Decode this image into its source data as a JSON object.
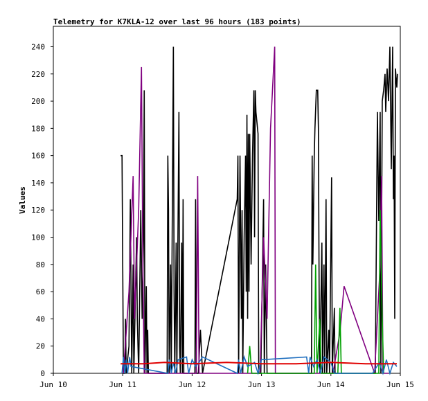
{
  "chart_data": {
    "type": "line",
    "title": "Telemetry for K7KLA-12 over last 96 hours (183 points)",
    "ylabel": "Values",
    "xlim": [
      0,
      5
    ],
    "ylim": [
      0,
      255
    ],
    "xticks": [
      {
        "value": 0,
        "label": "Jun 10"
      },
      {
        "value": 1,
        "label": "Jun 11"
      },
      {
        "value": 2,
        "label": "Jun 12"
      },
      {
        "value": 3,
        "label": "Jun 13"
      },
      {
        "value": 4,
        "label": "Jun 14"
      },
      {
        "value": 5,
        "label": "Jun 15"
      }
    ],
    "yticks": [
      0,
      20,
      40,
      60,
      80,
      100,
      120,
      140,
      160,
      180,
      200,
      220,
      240
    ],
    "series": [
      {
        "color": "#000000",
        "x": [
          0.97,
          0.99,
          1.0,
          1.01,
          1.03,
          1.04,
          1.05,
          1.09,
          1.11,
          1.12,
          1.13,
          1.15,
          1.16,
          1.2,
          1.21,
          1.23,
          1.26,
          1.28,
          1.3,
          1.31,
          1.32,
          1.34,
          1.35,
          1.36,
          1.37,
          1.64,
          1.65,
          1.66,
          1.67,
          1.69,
          1.7,
          1.73,
          1.74,
          1.75,
          1.77,
          1.78,
          1.81,
          1.82,
          1.83,
          1.85,
          1.86,
          1.87,
          1.88,
          2.04,
          2.05,
          2.06,
          2.09,
          2.12,
          2.15,
          2.65,
          2.66,
          2.67,
          2.69,
          2.71,
          2.72,
          2.73,
          2.75,
          2.77,
          2.78,
          2.79,
          2.8,
          2.81,
          2.82,
          2.83,
          2.85,
          2.87,
          2.89,
          2.9,
          2.91,
          2.92,
          2.95,
          2.96,
          2.99,
          3.03,
          3.04,
          3.06,
          3.08,
          3.12,
          3.72,
          3.73,
          3.74,
          3.76,
          3.77,
          3.79,
          3.81,
          3.82,
          3.83,
          3.84,
          3.87,
          3.88,
          3.9,
          3.91,
          3.93,
          3.94,
          3.97,
          3.98,
          4.01,
          4.02,
          4.05,
          4.06,
          4.64,
          4.67,
          4.69,
          4.71,
          4.72,
          4.74,
          4.76,
          4.78,
          4.79,
          4.81,
          4.83,
          4.85,
          4.87,
          4.89,
          4.9,
          4.91,
          4.92,
          4.93,
          4.95,
          4.96
        ],
        "values": [
          160,
          160,
          80,
          0,
          0,
          40,
          0,
          20,
          128,
          60,
          0,
          80,
          0,
          100,
          40,
          0,
          120,
          40,
          100,
          208,
          0,
          64,
          0,
          32,
          0,
          0,
          160,
          120,
          0,
          80,
          0,
          240,
          60,
          0,
          96,
          0,
          192,
          20,
          0,
          96,
          0,
          128,
          0,
          0,
          128,
          0,
          0,
          32,
          0,
          128,
          160,
          0,
          160,
          40,
          120,
          0,
          100,
          160,
          60,
          190,
          40,
          176,
          60,
          176,
          80,
          160,
          208,
          100,
          208,
          192,
          176,
          0,
          0,
          128,
          0,
          80,
          0,
          0,
          0,
          160,
          80,
          160,
          180,
          208,
          208,
          180,
          64,
          0,
          96,
          0,
          80,
          0,
          128,
          0,
          32,
          0,
          144,
          0,
          48,
          0,
          0,
          192,
          112,
          192,
          0,
          200,
          208,
          220,
          192,
          224,
          200,
          240,
          150,
          240,
          128,
          160,
          40,
          224,
          210,
          220
        ]
      },
      {
        "color": "#800080",
        "x": [
          1.01,
          1.09,
          1.15,
          1.17,
          1.23,
          1.27,
          1.29,
          1.31,
          2.06,
          2.08,
          2.1,
          2.98,
          3.03,
          3.08,
          3.13,
          3.19,
          3.2,
          3.3,
          4.03,
          4.13,
          4.19,
          4.63,
          4.71,
          4.73,
          4.75,
          4.83
        ],
        "values": [
          0,
          60,
          145,
          40,
          120,
          225,
          80,
          0,
          0,
          145,
          0,
          0,
          100,
          40,
          180,
          240,
          0,
          0,
          0,
          30,
          64,
          0,
          80,
          145,
          0,
          0
        ]
      },
      {
        "color": "#00a000",
        "x": [
          2.8,
          2.83,
          2.86,
          3.76,
          3.78,
          3.8,
          3.84,
          3.86,
          4.1,
          4.13,
          4.15,
          4.69,
          4.71,
          4.74,
          4.76
        ],
        "values": [
          0,
          20,
          0,
          0,
          80,
          0,
          40,
          0,
          0,
          48,
          0,
          0,
          120,
          40,
          0
        ]
      },
      {
        "color": "#1f6fbf",
        "x": [
          0.99,
          1.01,
          1.03,
          1.05,
          1.07,
          1.1,
          1.12,
          1.65,
          1.67,
          1.7,
          1.73,
          1.76,
          1.8,
          1.92,
          1.95,
          2.0,
          2.05,
          2.1,
          2.15,
          2.65,
          2.67,
          2.7,
          2.75,
          2.8,
          2.9,
          2.95,
          3.0,
          3.65,
          3.68,
          3.7,
          3.75,
          3.8,
          3.85,
          3.9,
          4.0,
          4.05,
          4.6,
          4.7,
          4.75,
          4.8,
          4.85,
          4.9,
          4.95
        ],
        "values": [
          0,
          12,
          0,
          10,
          0,
          12,
          5,
          0,
          10,
          0,
          8,
          0,
          10,
          12,
          0,
          10,
          5,
          8,
          12,
          0,
          10,
          0,
          12,
          5,
          8,
          0,
          10,
          12,
          0,
          12,
          5,
          10,
          0,
          12,
          8,
          0,
          0,
          8,
          0,
          10,
          0,
          8,
          5
        ]
      },
      {
        "color": "#e00000",
        "x": [
          0.97,
          1.3,
          1.6,
          2.0,
          2.5,
          3.0,
          3.5,
          4.0,
          4.5,
          4.95
        ],
        "values": [
          7,
          7,
          8,
          7,
          8,
          7,
          7,
          8,
          7,
          7
        ]
      }
    ]
  }
}
